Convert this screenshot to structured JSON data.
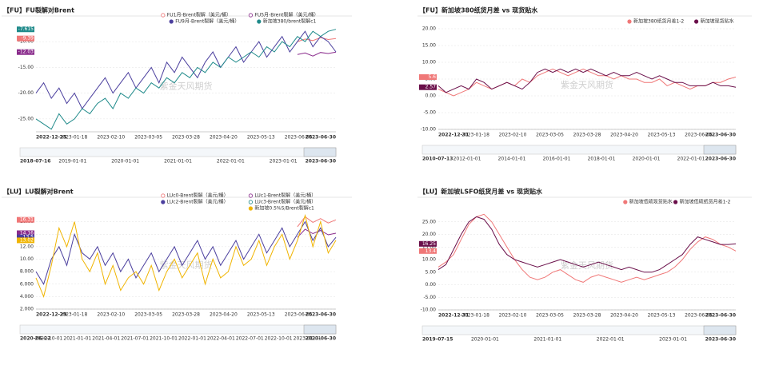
{
  "chart_data": [
    {
      "type": "line",
      "title": "【FU】FU裂解对Brent",
      "watermark": "紫金天风期货",
      "ylim": [
        -27.5,
        -7.5
      ],
      "yticks": [
        {
          "value": -25,
          "label": "-25.00"
        },
        {
          "value": -20,
          "label": "-20.00"
        },
        {
          "value": -15,
          "label": "-15.00"
        },
        {
          "value": -10,
          "label": "-10.00"
        }
      ],
      "x_labels": [
        "2022-12-25",
        "2023-01-18",
        "2023-02-10",
        "2023-03-05",
        "2023-03-28",
        "2023-04-20",
        "2023-05-13",
        "2023-06-05",
        "2023-06-30"
      ],
      "navigator_labels": [
        "2018-07-16",
        "2019-01-01",
        "2020-01-01",
        "2021-01-01",
        "2022-01-01",
        "2023-01-01",
        "2023-06-30"
      ],
      "grid": true,
      "series": [
        {
          "name": "FU1月-Brent裂解（美元/桶）",
          "color": "#f07878",
          "marker": "hollow",
          "current": -9.39,
          "values": [
            null,
            null,
            null,
            null,
            null,
            null,
            null,
            null,
            null,
            null,
            null,
            null,
            null,
            null,
            null,
            null,
            null,
            null,
            null,
            null,
            null,
            null,
            null,
            null,
            null,
            null,
            null,
            null,
            null,
            null,
            null,
            null,
            null,
            null,
            -10,
            -9.5,
            -9.8,
            -9.2,
            -9.6,
            -9.39
          ]
        },
        {
          "name": "FU5月-Brent裂解（美元/桶）",
          "color": "#8a2c8c",
          "marker": "hollow",
          "current": -12.03,
          "values": [
            null,
            null,
            null,
            null,
            null,
            null,
            null,
            null,
            null,
            null,
            null,
            null,
            null,
            null,
            null,
            null,
            null,
            null,
            null,
            null,
            null,
            null,
            null,
            null,
            null,
            null,
            null,
            null,
            null,
            null,
            null,
            null,
            null,
            null,
            -12.5,
            -12.2,
            -12.8,
            -12.1,
            -12.3,
            -12.03
          ]
        },
        {
          "name": "FU9月-Brent裂解（美元/桶）",
          "color": "#4b3f9e",
          "marker": "filled",
          "values": [
            -20,
            -18,
            -21,
            -19,
            -22,
            -20,
            -23,
            -21,
            -19,
            -17,
            -20,
            -18,
            -16,
            -19,
            -17,
            -15,
            -18,
            -14,
            -16,
            -13,
            -15,
            -17,
            -14,
            -12,
            -15,
            -13,
            -11,
            -14,
            -12,
            -10,
            -13,
            -11,
            -9,
            -12,
            -10,
            -8,
            -11,
            -9,
            -10,
            -12
          ]
        },
        {
          "name": "新加坡380/brent裂解c1",
          "color": "#1f8a8a",
          "marker": "filled",
          "current": -7.615,
          "values": [
            -25,
            -26,
            -27,
            -24,
            -26,
            -25,
            -23,
            -24,
            -22,
            -21,
            -23,
            -20,
            -21,
            -19,
            -20,
            -18,
            -19,
            -17,
            -18,
            -16,
            -17,
            -15,
            -16,
            -14,
            -15,
            -13,
            -14,
            -13,
            -12,
            -13,
            -11,
            -12,
            -10,
            -11,
            -9,
            -10,
            -8,
            -9,
            -8,
            -7.615
          ]
        }
      ]
    },
    {
      "type": "line",
      "title": "【FU】新加坡380纸货月差 vs 现货贴水",
      "watermark": "紫金天风期货",
      "ylim": [
        -10,
        20
      ],
      "yticks": [
        {
          "value": -10,
          "label": "-10.00"
        },
        {
          "value": -5,
          "label": "-5.00"
        },
        {
          "value": 0,
          "label": "0.00"
        },
        {
          "value": 5,
          "label": "5.00"
        },
        {
          "value": 10,
          "label": "10.00"
        },
        {
          "value": 15,
          "label": "15.00"
        },
        {
          "value": 20,
          "label": "20.00"
        }
      ],
      "x_labels": [
        "2022-12-31",
        "2023-01-18",
        "2023-02-10",
        "2023-03-05",
        "2023-03-28",
        "2023-04-20",
        "2023-05-13",
        "2023-06-05",
        "2023-06-30"
      ],
      "navigator_labels": [
        "2010-07-13",
        "2012-01-01",
        "2014-01-01",
        "2016-01-01",
        "2018-01-01",
        "2020-01-01",
        "2022-01-01",
        "2023-06-30"
      ],
      "grid": true,
      "series": [
        {
          "name": "新加坡380纸货月差1-2",
          "color": "#f07878",
          "marker": "filled",
          "current": 5.6,
          "values": [
            2,
            1,
            0,
            1,
            2,
            4,
            3,
            2,
            3,
            4,
            3,
            5,
            4,
            6,
            7,
            8,
            7,
            6,
            7,
            8,
            7,
            6,
            6,
            5,
            6,
            5,
            5,
            4,
            4,
            5,
            3,
            4,
            3,
            2,
            3,
            3,
            4,
            4,
            5,
            5.6
          ]
        },
        {
          "name": "新加坡现货贴水",
          "color": "#6a0f4a",
          "marker": "filled",
          "current": 2.57,
          "values": [
            3,
            1,
            2,
            3,
            2,
            5,
            4,
            2,
            3,
            4,
            3,
            2,
            4,
            7,
            8,
            7,
            8,
            7,
            8,
            7,
            8,
            7,
            6,
            7,
            6,
            6,
            7,
            6,
            5,
            6,
            5,
            4,
            4,
            3,
            3,
            3,
            4,
            3,
            3,
            2.57
          ]
        }
      ]
    },
    {
      "type": "line",
      "title": "【LU】LU裂解对Brent",
      "watermark": "紫金天风期货",
      "ylim": [
        2,
        18
      ],
      "yticks": [
        {
          "value": 2,
          "label": "2.000"
        },
        {
          "value": 4,
          "label": "4.000"
        },
        {
          "value": 6,
          "label": "6.000"
        },
        {
          "value": 8,
          "label": "8.000"
        },
        {
          "value": 10,
          "label": "10.00"
        },
        {
          "value": 12,
          "label": "12.00"
        },
        {
          "value": 14,
          "label": "14.00"
        },
        {
          "value": 16,
          "label": "16.00"
        }
      ],
      "x_labels": [
        "2022-12-29",
        "2023-01-18",
        "2023-02-10",
        "2023-03-05",
        "2023-03-28",
        "2023-04-20",
        "2023-05-13",
        "2023-06-05",
        "2023-06-30"
      ],
      "navigator_labels": [
        "2020-06-22",
        "2020-10-01",
        "2021-01-01",
        "2021-04-01",
        "2021-07-01",
        "2021-10-01",
        "2022-01-01",
        "2022-04-01",
        "2022-07-01",
        "2022-10-01",
        "2023-01-01",
        "2023-06-30"
      ],
      "grid": true,
      "series": [
        {
          "name": "LUc0-Brent裂解（美元/桶）",
          "color": "#f07878",
          "marker": "hollow",
          "current": 16.31,
          "values": [
            null,
            null,
            null,
            null,
            null,
            null,
            null,
            null,
            null,
            null,
            null,
            null,
            null,
            null,
            null,
            null,
            null,
            null,
            null,
            null,
            null,
            null,
            null,
            null,
            null,
            null,
            null,
            null,
            null,
            null,
            null,
            null,
            null,
            null,
            15.2,
            16.8,
            15.9,
            16.5,
            15.8,
            16.31
          ]
        },
        {
          "name": "LUc1-Brent裂解（美元/桶）",
          "color": "#8a2c8c",
          "marker": "hollow",
          "current": 14.16,
          "values": [
            null,
            null,
            null,
            null,
            null,
            null,
            null,
            null,
            null,
            null,
            null,
            null,
            null,
            null,
            null,
            null,
            null,
            null,
            null,
            null,
            null,
            null,
            null,
            null,
            null,
            null,
            null,
            null,
            null,
            null,
            null,
            null,
            null,
            null,
            13.5,
            14.8,
            14.1,
            14.6,
            13.9,
            14.16
          ]
        },
        {
          "name": "LUc2-Brent裂解（美元/桶）",
          "color": "#4b3f9e",
          "marker": "filled",
          "current": 13.5,
          "values": [
            8,
            6,
            10,
            12,
            9,
            14,
            11,
            10,
            12,
            9,
            11,
            8,
            10,
            7,
            9,
            11,
            8,
            10,
            12,
            9,
            11,
            13,
            10,
            12,
            9,
            11,
            13,
            10,
            12,
            14,
            11,
            13,
            15,
            12,
            14,
            16,
            13,
            15,
            12,
            13.5
          ]
        },
        {
          "name": "LUc3-Brent裂解（美元/桶）",
          "color": "#1f8a8a",
          "marker": "hollow",
          "values": [
            null,
            null,
            null,
            null,
            null,
            null,
            null,
            null,
            null,
            null,
            null,
            null,
            null,
            null,
            null,
            null,
            null,
            null,
            null,
            null,
            null,
            null,
            null,
            null,
            null,
            null,
            null,
            null,
            null,
            null,
            null,
            null,
            null,
            null,
            null,
            null,
            null,
            null,
            null,
            null
          ]
        },
        {
          "name": "新加坡0.5%S/Brent裂解c1",
          "color": "#f0b400",
          "marker": "filled",
          "current": 13.02,
          "values": [
            7,
            4,
            9,
            15,
            12,
            16,
            10,
            8,
            11,
            6,
            9,
            5,
            7,
            8,
            6,
            9,
            5,
            8,
            10,
            7,
            9,
            11,
            6,
            10,
            7,
            8,
            12,
            9,
            10,
            13,
            9,
            12,
            14,
            10,
            13,
            17,
            12,
            16,
            11,
            13.02
          ]
        }
      ]
    },
    {
      "type": "line",
      "title": "【LU】新加坡LSFO纸货月差 vs 现货贴水",
      "watermark": "紫金天风期货",
      "ylim": [
        -10,
        30
      ],
      "yticks": [
        {
          "value": -10,
          "label": "-10.00"
        },
        {
          "value": -5,
          "label": "-5.00"
        },
        {
          "value": 0,
          "label": "0.00"
        },
        {
          "value": 5,
          "label": "5.00"
        },
        {
          "value": 10,
          "label": "10.00"
        },
        {
          "value": 15,
          "label": "15.00"
        },
        {
          "value": 20,
          "label": "20.00"
        },
        {
          "value": 25,
          "label": "25.00"
        }
      ],
      "x_labels": [
        "2022-12-31",
        "2023-01-18",
        "2023-02-10",
        "2023-03-05",
        "2023-03-28",
        "2023-04-20",
        "2023-05-13",
        "2023-06-05",
        "2023-06-30"
      ],
      "navigator_labels": [
        "2019-07-15",
        "2020-01-01",
        "2021-01-01",
        "2022-01-01",
        "2023-01-01",
        "2023-06-30"
      ],
      "grid": true,
      "series": [
        {
          "name": "新加坡低硫现货贴水",
          "color": "#f07878",
          "marker": "filled",
          "current": 13.4,
          "values": [
            7,
            9,
            12,
            18,
            24,
            27,
            28,
            25,
            20,
            15,
            10,
            6,
            3,
            2,
            3,
            5,
            6,
            4,
            2,
            1,
            3,
            4,
            3,
            2,
            1,
            2,
            3,
            2,
            3,
            4,
            5,
            7,
            10,
            14,
            17,
            19,
            18,
            16,
            15,
            13.4
          ]
        },
        {
          "name": "新加坡低硫纸货月差1-2",
          "color": "#6a0f4a",
          "marker": "filled",
          "current": 16.25,
          "values": [
            6,
            8,
            14,
            20,
            25,
            27,
            26,
            22,
            16,
            12,
            10,
            9,
            8,
            7,
            8,
            9,
            10,
            9,
            8,
            7,
            8,
            9,
            8,
            7,
            6,
            7,
            6,
            5,
            5,
            6,
            8,
            10,
            12,
            16,
            19,
            18,
            17,
            16,
            16,
            16.25
          ]
        }
      ]
    }
  ]
}
